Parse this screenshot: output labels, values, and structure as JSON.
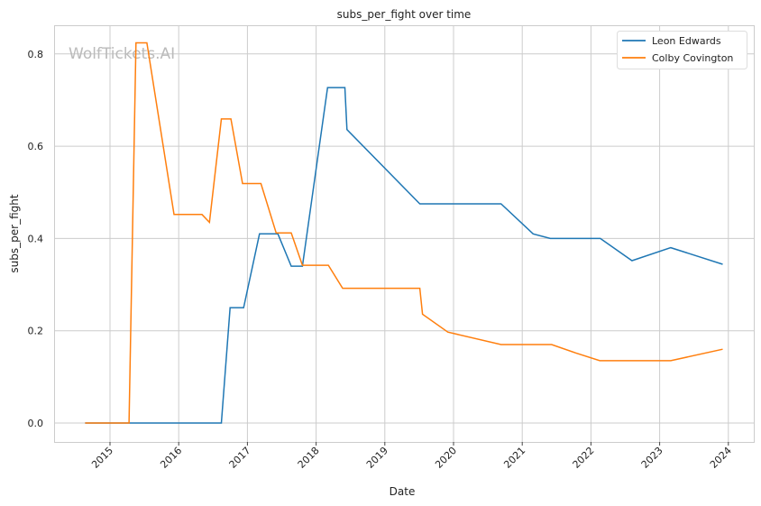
{
  "chart_data": {
    "type": "line",
    "title": "subs_per_fight over time",
    "xlabel": "Date",
    "ylabel": "subs_per_fight",
    "watermark": "WolfTickets.AI",
    "xlim": [
      "2014-04-01",
      "2024-05-01"
    ],
    "ylim": [
      -0.041,
      0.865
    ],
    "x_ticks": [
      "2015",
      "2016",
      "2017",
      "2018",
      "2019",
      "2020",
      "2021",
      "2022",
      "2023",
      "2024"
    ],
    "y_ticks": [
      "0.0",
      "0.2",
      "0.4",
      "0.6",
      "0.8"
    ],
    "grid": true,
    "legend_position": "top-right",
    "series": [
      {
        "name": "Leon Edwards",
        "color": "#1f77b4",
        "points": [
          [
            "2014-08-22",
            0
          ],
          [
            "2016-08-15",
            0
          ],
          [
            "2016-10-01",
            0.25
          ],
          [
            "2016-12-12",
            0.25
          ],
          [
            "2017-03-06",
            0.41
          ],
          [
            "2017-06-12",
            0.41
          ],
          [
            "2017-08-22",
            0.34
          ],
          [
            "2017-10-20",
            0.34
          ],
          [
            "2018-03-03",
            0.727
          ],
          [
            "2018-06-03",
            0.727
          ],
          [
            "2018-06-14",
            0.636
          ],
          [
            "2019-07-06",
            0.475
          ],
          [
            "2020-09-10",
            0.475
          ],
          [
            "2021-02-28",
            0.41
          ],
          [
            "2021-05-30",
            0.4
          ],
          [
            "2022-02-20",
            0.4
          ],
          [
            "2022-08-07",
            0.352
          ],
          [
            "2023-03-01",
            0.38
          ],
          [
            "2023-12-02",
            0.344
          ]
        ]
      },
      {
        "name": "Colby Covington",
        "color": "#ff7f0e",
        "points": [
          [
            "2014-08-22",
            0
          ],
          [
            "2015-04-12",
            0
          ],
          [
            "2015-05-19",
            0.824
          ],
          [
            "2015-07-16",
            0.824
          ],
          [
            "2015-12-07",
            0.452
          ],
          [
            "2016-05-04",
            0.452
          ],
          [
            "2016-06-13",
            0.435
          ],
          [
            "2016-08-15",
            0.659
          ],
          [
            "2016-10-05",
            0.659
          ],
          [
            "2016-12-06",
            0.519
          ],
          [
            "2017-03-14",
            0.519
          ],
          [
            "2017-06-03",
            0.412
          ],
          [
            "2017-08-22",
            0.412
          ],
          [
            "2017-10-20",
            0.342
          ],
          [
            "2018-03-07",
            0.342
          ],
          [
            "2018-05-22",
            0.292
          ],
          [
            "2019-07-06",
            0.292
          ],
          [
            "2019-07-20",
            0.236
          ],
          [
            "2019-12-02",
            0.197
          ],
          [
            "2020-09-10",
            0.17
          ],
          [
            "2021-06-06",
            0.17
          ],
          [
            "2021-10-12",
            0.152
          ],
          [
            "2022-02-17",
            0.135
          ],
          [
            "2023-03-01",
            0.135
          ],
          [
            "2023-12-02",
            0.16
          ]
        ]
      }
    ]
  }
}
